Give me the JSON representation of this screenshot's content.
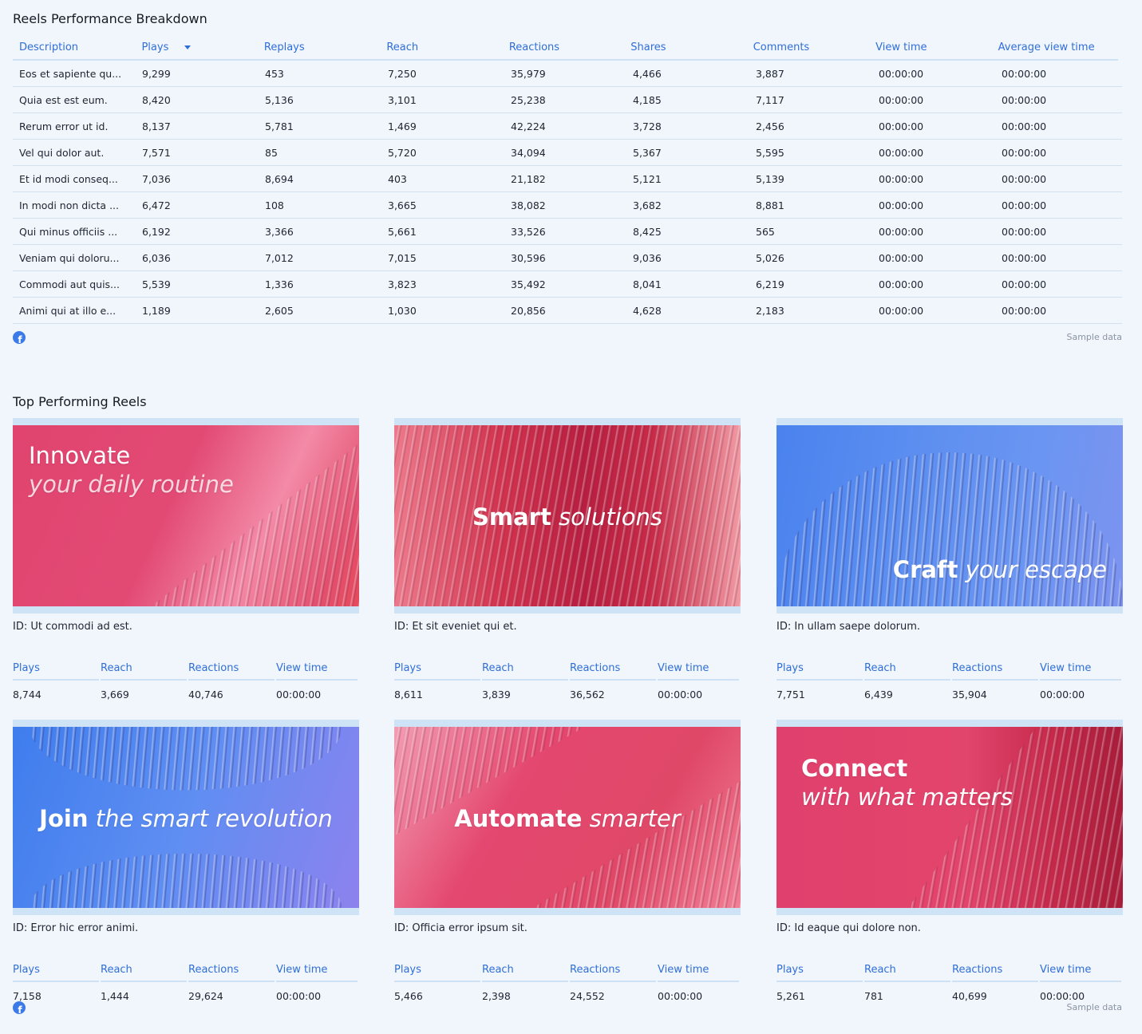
{
  "breakdown": {
    "title": "Reels Performance Breakdown",
    "columns": [
      "Description",
      "Plays",
      "Replays",
      "Reach",
      "Reactions",
      "Shares",
      "Comments",
      "View time",
      "Average view time"
    ],
    "rows": [
      [
        "Eos et sapiente qu...",
        "9,299",
        "453",
        "7,250",
        "35,979",
        "4,466",
        "3,887",
        "00:00:00",
        "00:00:00"
      ],
      [
        "Quia est est eum.",
        "8,420",
        "5,136",
        "3,101",
        "25,238",
        "4,185",
        "7,117",
        "00:00:00",
        "00:00:00"
      ],
      [
        "Rerum error ut id.",
        "8,137",
        "5,781",
        "1,469",
        "42,224",
        "3,728",
        "2,456",
        "00:00:00",
        "00:00:00"
      ],
      [
        "Vel qui dolor aut.",
        "7,571",
        "85",
        "5,720",
        "34,094",
        "5,367",
        "5,595",
        "00:00:00",
        "00:00:00"
      ],
      [
        "Et id modi conseq...",
        "7,036",
        "8,694",
        "403",
        "21,182",
        "5,121",
        "5,139",
        "00:00:00",
        "00:00:00"
      ],
      [
        "In modi non dicta ...",
        "6,472",
        "108",
        "3,665",
        "38,082",
        "3,682",
        "8,881",
        "00:00:00",
        "00:00:00"
      ],
      [
        "Qui minus officiis ...",
        "6,192",
        "3,366",
        "5,661",
        "33,526",
        "8,425",
        "565",
        "00:00:00",
        "00:00:00"
      ],
      [
        "Veniam qui doloru...",
        "6,036",
        "7,012",
        "7,015",
        "30,596",
        "9,036",
        "5,026",
        "00:00:00",
        "00:00:00"
      ],
      [
        "Commodi aut quis...",
        "5,539",
        "1,336",
        "3,823",
        "35,492",
        "8,041",
        "6,219",
        "00:00:00",
        "00:00:00"
      ],
      [
        "Animi qui at illo e...",
        "1,189",
        "2,605",
        "1,030",
        "20,856",
        "4,628",
        "2,183",
        "00:00:00",
        "00:00:00"
      ]
    ],
    "sample_note": "Sample data",
    "platform_icon": "facebook-icon"
  },
  "top": {
    "title": "Top Performing Reels",
    "stat_labels": [
      "Plays",
      "Reach",
      "Reactions",
      "View time"
    ],
    "sample_note": "Sample data",
    "cards": [
      {
        "id_caption": "ID: Ut commodi ad est.",
        "headline_1": "Innovate",
        "headline_2": "your daily routine",
        "stats": [
          "8,744",
          "3,669",
          "40,746",
          "00:00:00"
        ]
      },
      {
        "id_caption": "ID: Et sit eveniet qui et.",
        "headline_1": "Smart",
        "headline_2": "solutions",
        "stats": [
          "8,611",
          "3,839",
          "36,562",
          "00:00:00"
        ]
      },
      {
        "id_caption": "ID: In ullam saepe dolorum.",
        "headline_1": "Craft",
        "headline_2": "your escape",
        "stats": [
          "7,751",
          "6,439",
          "35,904",
          "00:00:00"
        ]
      },
      {
        "id_caption": "ID: Error hic error animi.",
        "headline_1": "Join",
        "headline_2": "the smart revolution",
        "stats": [
          "7,158",
          "1,444",
          "29,624",
          "00:00:00"
        ]
      },
      {
        "id_caption": "ID: Officia error ipsum sit.",
        "headline_1": "Automate",
        "headline_2": "smarter",
        "stats": [
          "5,466",
          "2,398",
          "24,552",
          "00:00:00"
        ]
      },
      {
        "id_caption": "ID: Id eaque qui dolore non.",
        "headline_1": "Connect",
        "headline_2": "with what matters",
        "stats": [
          "5,261",
          "781",
          "40,699",
          "00:00:00"
        ]
      }
    ]
  },
  "colors": {
    "accent": "#2f6ed8",
    "background": "#f1f6fd",
    "divider": "#cfe1f4"
  }
}
